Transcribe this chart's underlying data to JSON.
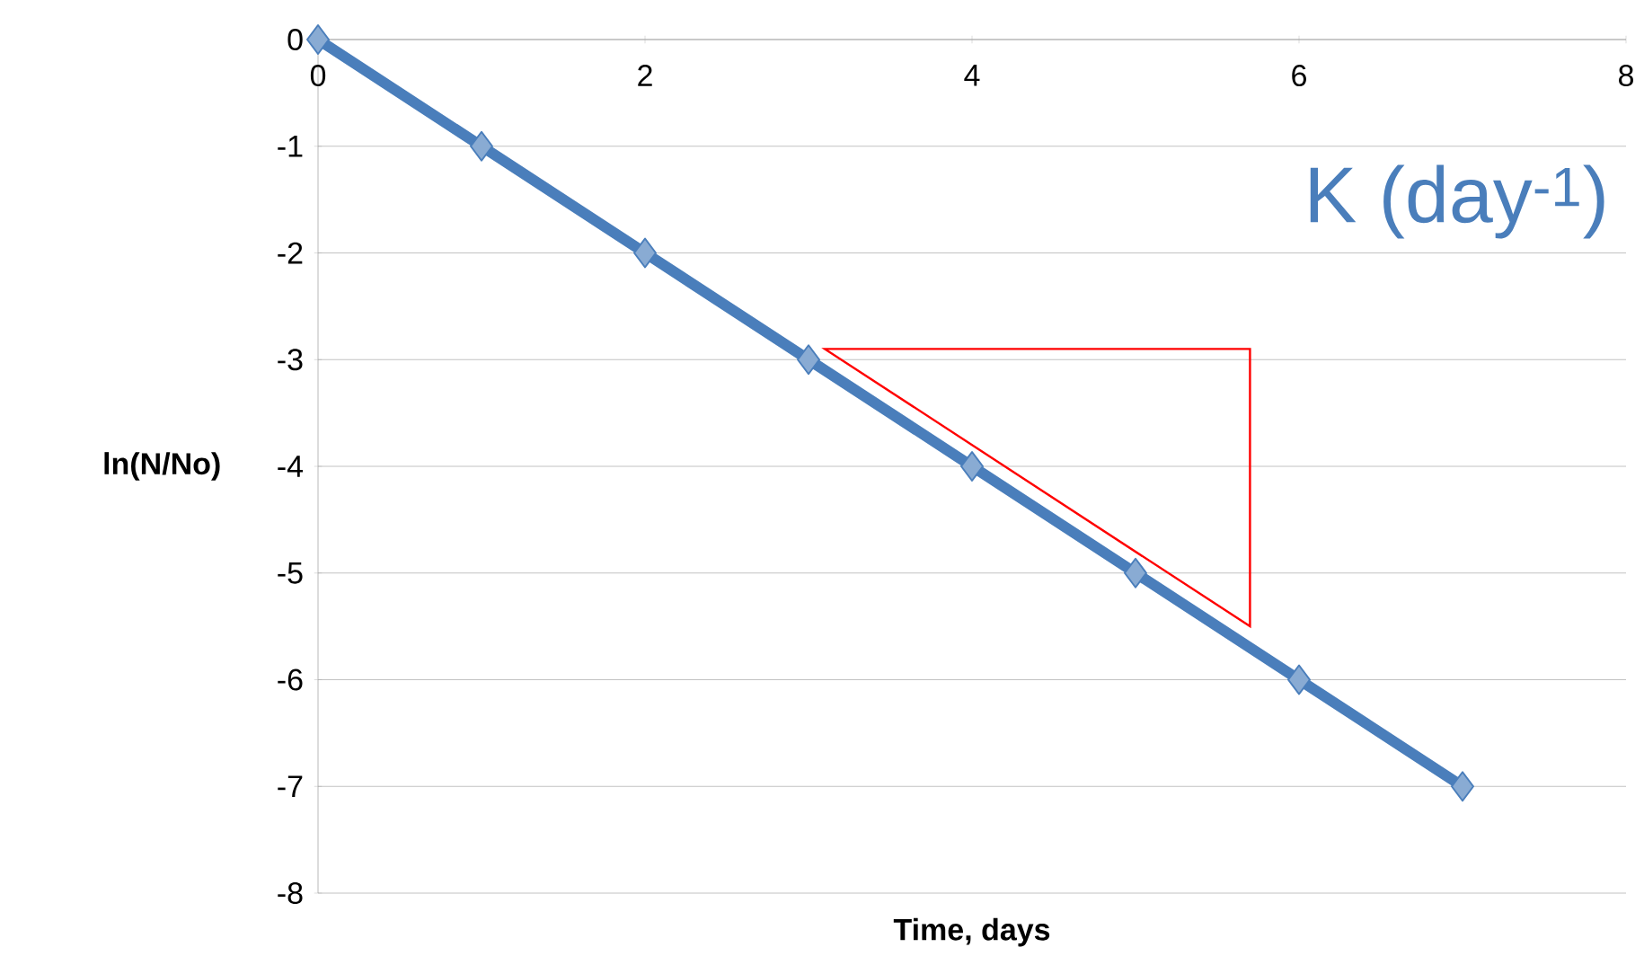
{
  "chart_data": {
    "type": "line",
    "xlabel": "Time, days",
    "ylabel": "ln(N/No)",
    "x": [
      0,
      1,
      2,
      3,
      4,
      5,
      6,
      7
    ],
    "series": [
      {
        "color": "#4a7ebb",
        "values": [
          0,
          -1,
          -2,
          -3,
          -4,
          -5,
          -6,
          -7
        ]
      }
    ],
    "xlim": [
      0,
      8
    ],
    "ylim": [
      -8,
      0
    ],
    "xticks": [
      0,
      2,
      4,
      6,
      8
    ],
    "yticks": [
      -8,
      -7,
      -6,
      -5,
      -4,
      -3,
      -2,
      -1,
      0
    ],
    "grid": "y",
    "marker": "diamond",
    "line_style": "solid",
    "annotations": [
      "K (day$^{-1}$)"
    ]
  }
}
